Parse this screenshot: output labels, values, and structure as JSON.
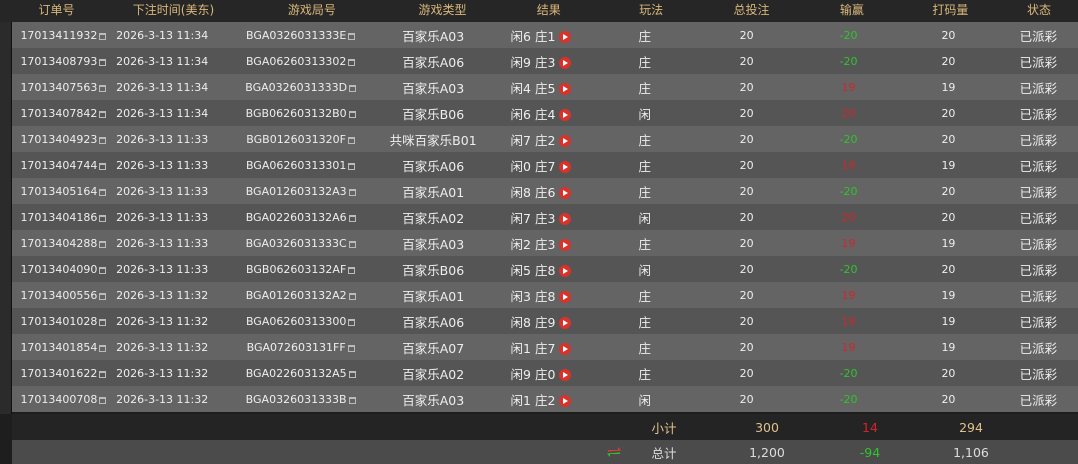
{
  "headers": [
    "订单号",
    "下注时间(美东)",
    "游戏局号",
    "游戏类型",
    "结果",
    "玩法",
    "总投注",
    "输赢",
    "打码量",
    "状态"
  ],
  "colors": {
    "header_text": "#d9b77a",
    "win": "#2fc42f",
    "lose": "#d0262a",
    "play_icon": "#d8322a"
  },
  "rows": [
    {
      "order": "17013411932",
      "time": "2026-3-13 11:34",
      "round": "BGA0326031333E",
      "game": "百家乐A03",
      "result": "闲6 庄1",
      "bet_on": "庄",
      "stake": "20",
      "winloss": "-20",
      "turnover": "20",
      "status": "已派彩"
    },
    {
      "order": "17013408793",
      "time": "2026-3-13 11:34",
      "round": "BGA06260313302",
      "game": "百家乐A06",
      "result": "闲9 庄3",
      "bet_on": "庄",
      "stake": "20",
      "winloss": "-20",
      "turnover": "20",
      "status": "已派彩"
    },
    {
      "order": "17013407563",
      "time": "2026-3-13 11:34",
      "round": "BGA0326031333D",
      "game": "百家乐A03",
      "result": "闲4 庄5",
      "bet_on": "庄",
      "stake": "20",
      "winloss": "19",
      "turnover": "19",
      "status": "已派彩"
    },
    {
      "order": "17013407842",
      "time": "2026-3-13 11:34",
      "round": "BGB062603132B0",
      "game": "百家乐B06",
      "result": "闲6 庄4",
      "bet_on": "闲",
      "stake": "20",
      "winloss": "20",
      "turnover": "20",
      "status": "已派彩"
    },
    {
      "order": "17013404923",
      "time": "2026-3-13 11:33",
      "round": "BGB0126031320F",
      "game": "共咪百家乐B01",
      "result": "闲7 庄2",
      "bet_on": "庄",
      "stake": "20",
      "winloss": "-20",
      "turnover": "20",
      "status": "已派彩"
    },
    {
      "order": "17013404744",
      "time": "2026-3-13 11:33",
      "round": "BGA06260313301",
      "game": "百家乐A06",
      "result": "闲0 庄7",
      "bet_on": "庄",
      "stake": "20",
      "winloss": "19",
      "turnover": "19",
      "status": "已派彩"
    },
    {
      "order": "17013405164",
      "time": "2026-3-13 11:33",
      "round": "BGA012603132A3",
      "game": "百家乐A01",
      "result": "闲8 庄6",
      "bet_on": "庄",
      "stake": "20",
      "winloss": "-20",
      "turnover": "20",
      "status": "已派彩"
    },
    {
      "order": "17013404186",
      "time": "2026-3-13 11:33",
      "round": "BGA022603132A6",
      "game": "百家乐A02",
      "result": "闲7 庄3",
      "bet_on": "闲",
      "stake": "20",
      "winloss": "20",
      "turnover": "20",
      "status": "已派彩"
    },
    {
      "order": "17013404288",
      "time": "2026-3-13 11:33",
      "round": "BGA0326031333C",
      "game": "百家乐A03",
      "result": "闲2 庄3",
      "bet_on": "庄",
      "stake": "20",
      "winloss": "19",
      "turnover": "19",
      "status": "已派彩"
    },
    {
      "order": "17013404090",
      "time": "2026-3-13 11:33",
      "round": "BGB062603132AF",
      "game": "百家乐B06",
      "result": "闲5 庄8",
      "bet_on": "闲",
      "stake": "20",
      "winloss": "-20",
      "turnover": "20",
      "status": "已派彩"
    },
    {
      "order": "17013400556",
      "time": "2026-3-13 11:32",
      "round": "BGA012603132A2",
      "game": "百家乐A01",
      "result": "闲3 庄8",
      "bet_on": "庄",
      "stake": "20",
      "winloss": "19",
      "turnover": "19",
      "status": "已派彩"
    },
    {
      "order": "17013401028",
      "time": "2026-3-13 11:32",
      "round": "BGA06260313300",
      "game": "百家乐A06",
      "result": "闲8 庄9",
      "bet_on": "庄",
      "stake": "20",
      "winloss": "19",
      "turnover": "19",
      "status": "已派彩"
    },
    {
      "order": "17013401854",
      "time": "2026-3-13 11:32",
      "round": "BGA072603131FF",
      "game": "百家乐A07",
      "result": "闲1 庄7",
      "bet_on": "庄",
      "stake": "20",
      "winloss": "19",
      "turnover": "19",
      "status": "已派彩"
    },
    {
      "order": "17013401622",
      "time": "2026-3-13 11:32",
      "round": "BGA022603132A5",
      "game": "百家乐A02",
      "result": "闲9 庄0",
      "bet_on": "庄",
      "stake": "20",
      "winloss": "-20",
      "turnover": "20",
      "status": "已派彩"
    },
    {
      "order": "17013400708",
      "time": "2026-3-13 11:32",
      "round": "BGA0326031333B",
      "game": "百家乐A03",
      "result": "闲1 庄2",
      "bet_on": "闲",
      "stake": "20",
      "winloss": "-20",
      "turnover": "20",
      "status": "已派彩"
    }
  ],
  "subtotal": {
    "label": "小计",
    "stake": "300",
    "winloss": "14",
    "turnover": "294"
  },
  "total": {
    "label": "总计",
    "stake": "1,200",
    "winloss": "-94",
    "turnover": "1,106",
    "icon": "swap-arrows-icon"
  }
}
